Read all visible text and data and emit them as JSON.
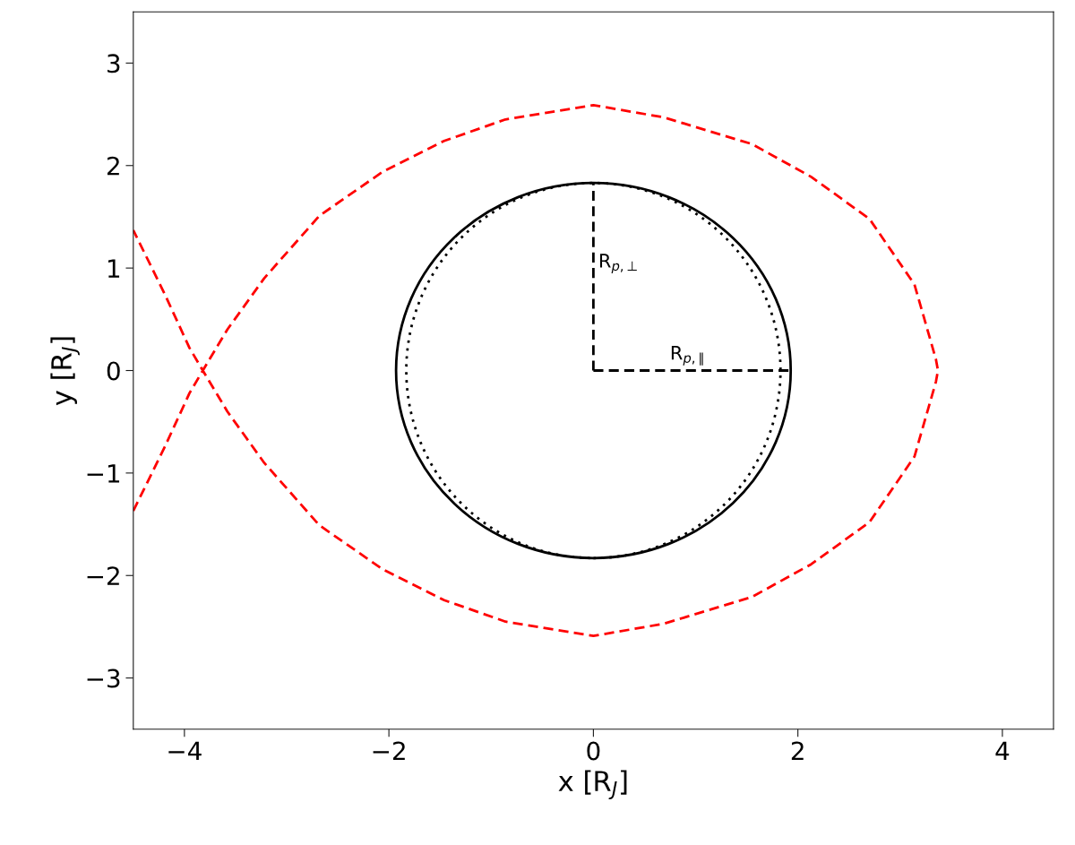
{
  "chart_data": {
    "type": "line",
    "xlabel": "x [R$_{J}$]",
    "ylabel": "y [R$_{J}$]",
    "xlim": [
      -4.5,
      4.5
    ],
    "ylim": [
      -3.5,
      3.5
    ],
    "xticks": [
      {
        "value": -4,
        "label": "−4"
      },
      {
        "value": -2,
        "label": "−2"
      },
      0,
      2,
      4
    ],
    "yticks": [
      {
        "value": -3,
        "label": "−3"
      },
      {
        "value": -2,
        "label": "−2"
      },
      {
        "value": -1,
        "label": "−1"
      },
      0,
      1,
      2,
      3
    ],
    "grid": false,
    "legend": false,
    "series": [
      {
        "color": "#ff0000",
        "line_style": "dashed",
        "x": [
          -4.5,
          -4.19,
          -3.95,
          -3.82,
          -3.58,
          -3.22,
          -2.68,
          -2.06,
          -1.46,
          -0.86,
          0,
          0.69,
          1.55,
          2.13,
          2.7,
          3.14,
          3.35,
          3.37,
          3.35,
          3.14,
          2.7,
          2.13,
          1.55,
          0.69,
          0,
          -0.86,
          -1.46,
          -2.06,
          -2.68,
          -3.22,
          -3.58,
          -3.82,
          -3.95,
          -4.19,
          -4.5
        ],
        "values": [
          -1.37,
          -0.74,
          -0.22,
          0,
          0.4,
          0.9,
          1.51,
          1.94,
          2.24,
          2.45,
          2.59,
          2.47,
          2.21,
          1.89,
          1.48,
          0.84,
          0.11,
          0,
          -0.11,
          -0.84,
          -1.48,
          -1.89,
          -2.21,
          -2.47,
          -2.59,
          -2.45,
          -2.24,
          -1.94,
          -1.51,
          -0.9,
          -0.4,
          0,
          0.22,
          0.74,
          1.37
        ]
      },
      {
        "color": "#000000",
        "line_style": "dashed",
        "x": [
          0,
          0
        ],
        "values": [
          0,
          1.83
        ]
      },
      {
        "color": "#000000",
        "line_style": "dashed",
        "x": [
          0,
          1.93
        ],
        "values": [
          0,
          0
        ]
      }
    ],
    "annotations": [
      {
        "text": "R$_{p,⊥}$",
        "x": 0,
        "y": 0.9
      },
      {
        "text": "R$_{p,∥}$",
        "x": 0.7,
        "y": 0
      }
    ]
  }
}
